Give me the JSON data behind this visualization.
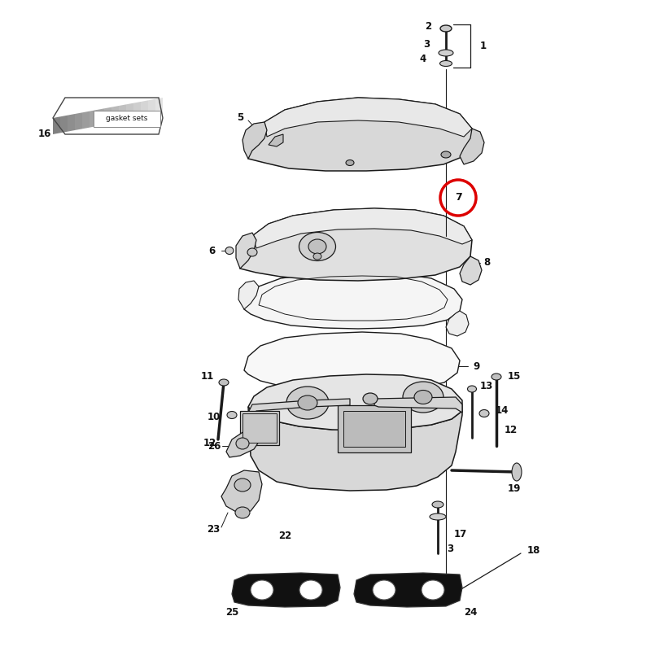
{
  "bg_color": "#ffffff",
  "lc": "#1a1a1a",
  "lw": 1.0,
  "fig_w": 8.0,
  "fig_h": 8.0,
  "dpi": 100,
  "gasket_text": "gasket sets",
  "red_color": "#dd0000",
  "part_fill": "#e2e2e2",
  "gasket_fill": "#f0f0f0",
  "dark_fill": "#111111",
  "label_fontsize": 8.5
}
